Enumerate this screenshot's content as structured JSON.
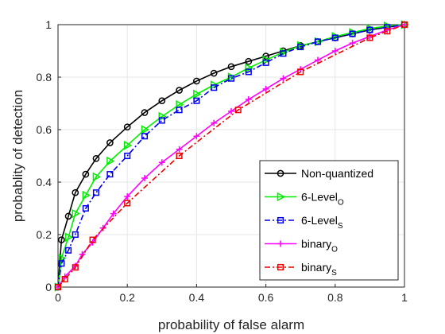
{
  "chart_data": {
    "type": "line",
    "title": "",
    "xlabel": "probability of false alarm",
    "ylabel": "probablity of detection",
    "xlim": [
      0,
      1
    ],
    "ylim": [
      0,
      1
    ],
    "xticks": [
      0,
      0.2,
      0.4,
      0.6,
      0.8,
      1
    ],
    "yticks": [
      0,
      0.2,
      0.4,
      0.6,
      0.8,
      1
    ],
    "xtick_labels": [
      "0",
      "0.2",
      "0.4",
      "0.6",
      "0.8",
      "1"
    ],
    "ytick_labels": [
      "0",
      "0.2",
      "0.4",
      "0.6",
      "0.8",
      "1"
    ],
    "grid": true,
    "legend_position": "bottom-right",
    "series": [
      {
        "name": "Non-quantized",
        "subscript": "",
        "color": "#000000",
        "dash": "solid",
        "marker": "circle",
        "x": [
          0,
          0.01,
          0.03,
          0.05,
          0.08,
          0.11,
          0.15,
          0.2,
          0.25,
          0.3,
          0.35,
          0.4,
          0.45,
          0.5,
          0.55,
          0.6,
          0.65,
          0.7,
          0.75,
          0.8,
          0.85,
          0.9,
          0.95,
          1
        ],
        "y": [
          0,
          0.18,
          0.27,
          0.36,
          0.43,
          0.49,
          0.55,
          0.61,
          0.665,
          0.71,
          0.75,
          0.785,
          0.815,
          0.84,
          0.86,
          0.88,
          0.9,
          0.92,
          0.935,
          0.95,
          0.965,
          0.98,
          0.99,
          1
        ]
      },
      {
        "name": "6-Level",
        "subscript": "O",
        "color": "#00ee00",
        "dash": "solid",
        "marker": "triangle-right",
        "x": [
          0,
          0.01,
          0.03,
          0.05,
          0.08,
          0.11,
          0.15,
          0.2,
          0.25,
          0.3,
          0.35,
          0.4,
          0.45,
          0.5,
          0.55,
          0.6,
          0.65,
          0.7,
          0.75,
          0.8,
          0.85,
          0.9,
          0.95,
          1
        ],
        "y": [
          0,
          0.11,
          0.19,
          0.28,
          0.35,
          0.42,
          0.48,
          0.54,
          0.6,
          0.65,
          0.695,
          0.735,
          0.77,
          0.8,
          0.835,
          0.865,
          0.895,
          0.92,
          0.935,
          0.955,
          0.97,
          0.985,
          0.995,
          1
        ]
      },
      {
        "name": "6-Level",
        "subscript": "S",
        "color": "#0000ee",
        "dash": "dashdot",
        "marker": "square",
        "x": [
          0,
          0.01,
          0.03,
          0.05,
          0.08,
          0.11,
          0.15,
          0.2,
          0.25,
          0.3,
          0.35,
          0.4,
          0.45,
          0.5,
          0.55,
          0.6,
          0.65,
          0.7,
          0.75,
          0.8,
          0.85,
          0.9,
          0.95,
          1
        ],
        "y": [
          0,
          0.09,
          0.14,
          0.2,
          0.3,
          0.36,
          0.43,
          0.5,
          0.575,
          0.635,
          0.675,
          0.71,
          0.76,
          0.795,
          0.82,
          0.855,
          0.89,
          0.915,
          0.935,
          0.95,
          0.965,
          0.98,
          0.99,
          1
        ]
      },
      {
        "name": "binary",
        "subscript": "O",
        "color": "#ff00ff",
        "dash": "solid",
        "marker": "plus",
        "x": [
          0,
          0.02,
          0.05,
          0.07,
          0.1,
          0.13,
          0.16,
          0.2,
          0.25,
          0.3,
          0.35,
          0.4,
          0.45,
          0.5,
          0.55,
          0.6,
          0.65,
          0.7,
          0.75,
          0.8,
          0.85,
          0.9,
          0.95,
          1
        ],
        "y": [
          0,
          0.04,
          0.08,
          0.125,
          0.17,
          0.225,
          0.28,
          0.345,
          0.415,
          0.475,
          0.525,
          0.575,
          0.625,
          0.67,
          0.715,
          0.755,
          0.795,
          0.83,
          0.865,
          0.9,
          0.93,
          0.955,
          0.98,
          1
        ]
      },
      {
        "name": "binary",
        "subscript": "S",
        "color": "#ee0000",
        "dash": "dashdot",
        "marker": "square",
        "x": [
          0,
          0.02,
          0.05,
          0.1,
          0.2,
          0.35,
          0.52,
          0.7,
          0.9,
          0.95,
          1
        ],
        "y": [
          0,
          0.03,
          0.075,
          0.18,
          0.32,
          0.5,
          0.675,
          0.82,
          0.95,
          0.975,
          1
        ]
      }
    ]
  }
}
